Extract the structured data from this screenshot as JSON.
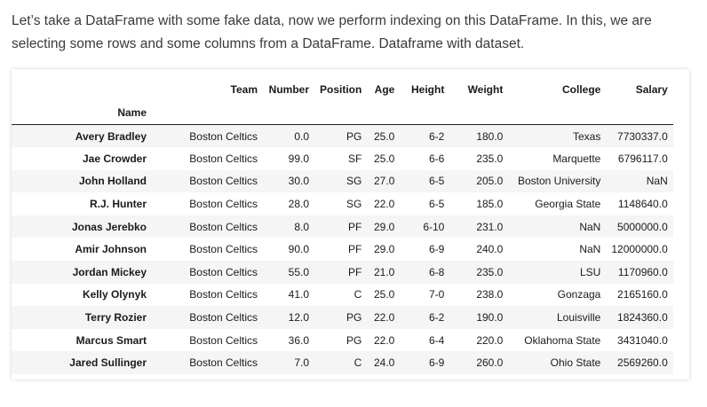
{
  "intro": {
    "line1": "Let’s take a DataFrame with some fake data, now we perform indexing on this DataFrame. In this, we are",
    "line2": "selecting some rows and some columns from a DataFrame. Dataframe with dataset."
  },
  "table": {
    "index_name": "Name",
    "columns": [
      "Team",
      "Number",
      "Position",
      "Age",
      "Height",
      "Weight",
      "College",
      "Salary"
    ],
    "rows": [
      {
        "name": "Avery Bradley",
        "cells": [
          "Boston Celtics",
          "0.0",
          "PG",
          "25.0",
          "6-2",
          "180.0",
          "Texas",
          "7730337.0"
        ]
      },
      {
        "name": "Jae Crowder",
        "cells": [
          "Boston Celtics",
          "99.0",
          "SF",
          "25.0",
          "6-6",
          "235.0",
          "Marquette",
          "6796117.0"
        ]
      },
      {
        "name": "John Holland",
        "cells": [
          "Boston Celtics",
          "30.0",
          "SG",
          "27.0",
          "6-5",
          "205.0",
          "Boston University",
          "NaN"
        ]
      },
      {
        "name": "R.J. Hunter",
        "cells": [
          "Boston Celtics",
          "28.0",
          "SG",
          "22.0",
          "6-5",
          "185.0",
          "Georgia State",
          "1148640.0"
        ]
      },
      {
        "name": "Jonas Jerebko",
        "cells": [
          "Boston Celtics",
          "8.0",
          "PF",
          "29.0",
          "6-10",
          "231.0",
          "NaN",
          "5000000.0"
        ]
      },
      {
        "name": "Amir Johnson",
        "cells": [
          "Boston Celtics",
          "90.0",
          "PF",
          "29.0",
          "6-9",
          "240.0",
          "NaN",
          "12000000.0"
        ]
      },
      {
        "name": "Jordan Mickey",
        "cells": [
          "Boston Celtics",
          "55.0",
          "PF",
          "21.0",
          "6-8",
          "235.0",
          "LSU",
          "1170960.0"
        ]
      },
      {
        "name": "Kelly Olynyk",
        "cells": [
          "Boston Celtics",
          "41.0",
          "C",
          "25.0",
          "7-0",
          "238.0",
          "Gonzaga",
          "2165160.0"
        ]
      },
      {
        "name": "Terry Rozier",
        "cells": [
          "Boston Celtics",
          "12.0",
          "PG",
          "22.0",
          "6-2",
          "190.0",
          "Louisville",
          "1824360.0"
        ]
      },
      {
        "name": "Marcus Smart",
        "cells": [
          "Boston Celtics",
          "36.0",
          "PG",
          "22.0",
          "6-4",
          "220.0",
          "Oklahoma State",
          "3431040.0"
        ]
      },
      {
        "name": "Jared Sullinger",
        "cells": [
          "Boston Celtics",
          "7.0",
          "C",
          "24.0",
          "6-9",
          "260.0",
          "Ohio State",
          "2569260.0"
        ]
      }
    ]
  }
}
